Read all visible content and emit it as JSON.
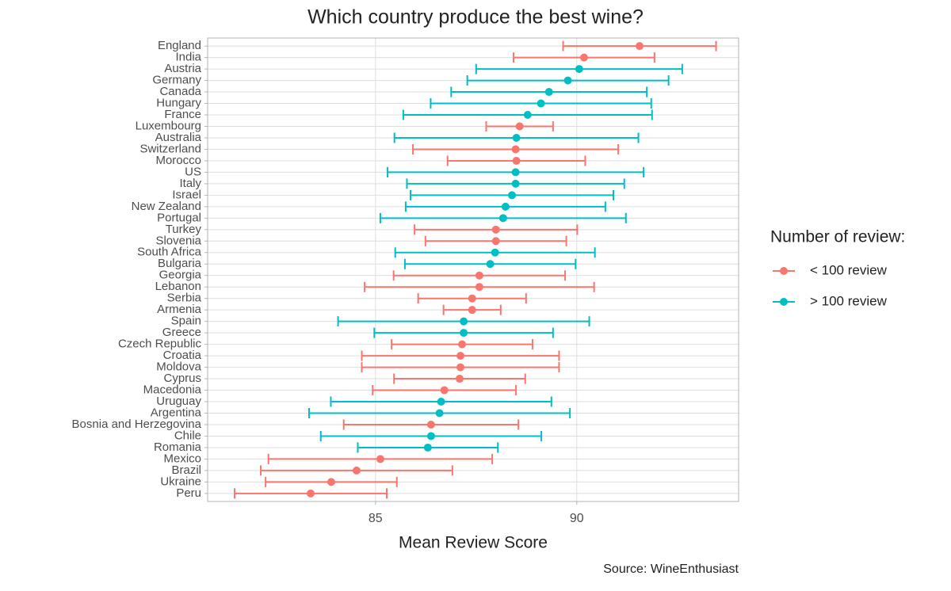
{
  "chart_data": {
    "type": "errorbar",
    "orientation": "horizontal",
    "title": "Which country produce the best wine?",
    "x_label": "Mean Review Score",
    "caption": "Source: WineEnthusiast",
    "legend_title": "Number of review:",
    "categories": [
      "England",
      "India",
      "Austria",
      "Germany",
      "Canada",
      "Hungary",
      "France",
      "Luxembourg",
      "Australia",
      "Switzerland",
      "Morocco",
      "US",
      "Italy",
      "Israel",
      "New Zealand",
      "Portugal",
      "Turkey",
      "Slovenia",
      "South Africa",
      "Bulgaria",
      "Georgia",
      "Lebanon",
      "Serbia",
      "Armenia",
      "Spain",
      "Greece",
      "Czech Republic",
      "Croatia",
      "Moldova",
      "Cyprus",
      "Macedonia",
      "Uruguay",
      "Argentina",
      "Bosnia and Herzegovina",
      "Chile",
      "Romania",
      "Mexico",
      "Brazil",
      "Ukraine",
      "Peru"
    ],
    "series": [
      {
        "name": "< 100 review",
        "color": "#f8766d",
        "values": [
          91.56,
          90.18,
          null,
          null,
          null,
          null,
          null,
          88.58,
          null,
          88.48,
          88.5,
          null,
          null,
          null,
          null,
          null,
          87.99,
          87.99,
          null,
          null,
          87.58,
          87.58,
          87.4,
          87.4,
          null,
          null,
          87.15,
          87.11,
          87.11,
          87.09,
          86.71,
          null,
          null,
          86.38,
          null,
          null,
          85.12,
          84.53,
          83.9,
          83.39
        ],
        "errors": [
          1.9,
          1.75,
          null,
          null,
          null,
          null,
          null,
          0.83,
          null,
          2.55,
          1.71,
          null,
          null,
          null,
          null,
          null,
          2.02,
          1.75,
          null,
          null,
          2.13,
          2.85,
          1.34,
          0.71,
          null,
          null,
          1.75,
          2.45,
          2.45,
          1.63,
          1.78,
          null,
          null,
          2.17,
          null,
          null,
          2.78,
          2.38,
          1.63,
          1.89
        ]
      },
      {
        "name": "> 100 review",
        "color": "#00bfc4",
        "values": [
          null,
          null,
          90.06,
          89.78,
          89.31,
          89.11,
          88.78,
          null,
          88.5,
          null,
          null,
          88.48,
          88.48,
          88.39,
          88.23,
          88.17,
          null,
          null,
          87.97,
          87.85,
          null,
          null,
          null,
          null,
          87.19,
          87.19,
          null,
          null,
          null,
          null,
          null,
          86.63,
          86.59,
          null,
          86.38,
          86.3,
          null,
          null,
          null,
          null
        ],
        "errors": [
          null,
          null,
          2.56,
          2.5,
          2.43,
          2.74,
          3.09,
          null,
          3.03,
          null,
          null,
          3.18,
          2.7,
          2.52,
          2.48,
          3.05,
          null,
          null,
          2.48,
          2.12,
          null,
          null,
          null,
          null,
          3.12,
          2.22,
          null,
          null,
          null,
          null,
          null,
          2.74,
          3.24,
          null,
          2.74,
          1.74,
          null,
          null,
          null,
          null
        ]
      }
    ],
    "xlim": [
      80.83,
      94.02
    ],
    "xticks": [
      85,
      90
    ],
    "grid": true
  }
}
